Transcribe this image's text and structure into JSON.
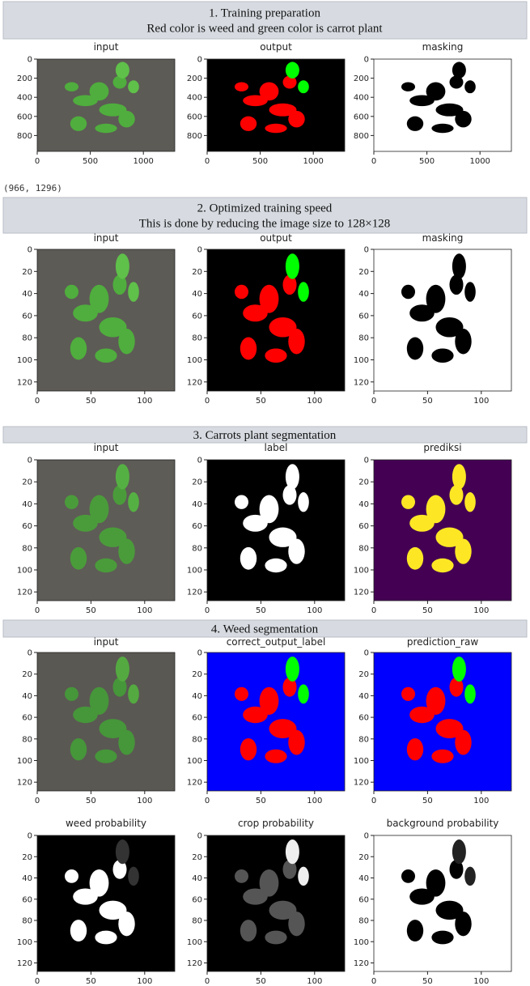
{
  "sections": [
    {
      "header": [
        "1. Training preparation",
        "Red color is weed and green color is carrot plant"
      ],
      "rows": [
        {
          "panels": [
            {
              "title": "input",
              "yticks": [
                0,
                200,
                400,
                600,
                800
              ],
              "xticks": [
                0,
                500,
                1000
              ]
            },
            {
              "title": "output",
              "yticks": [
                0,
                200,
                400,
                600,
                800
              ],
              "xticks": [
                0,
                500,
                1000
              ]
            },
            {
              "title": "masking",
              "yticks": [
                0,
                200,
                400,
                600,
                800
              ],
              "xticks": [
                0,
                500,
                1000
              ]
            }
          ]
        }
      ],
      "note": "(966, 1296)"
    },
    {
      "header": [
        "2. Optimized training speed",
        "This is done by reducing the image size to 128×128"
      ],
      "rows": [
        {
          "panels": [
            {
              "title": "input",
              "yticks": [
                0,
                20,
                40,
                60,
                80,
                100,
                120
              ],
              "xticks": [
                0,
                50,
                100
              ]
            },
            {
              "title": "output",
              "yticks": [
                0,
                20,
                40,
                60,
                80,
                100,
                120
              ],
              "xticks": [
                0,
                50,
                100
              ]
            },
            {
              "title": "masking",
              "yticks": [
                0,
                20,
                40,
                60,
                80,
                100,
                120
              ],
              "xticks": [
                0,
                50,
                100
              ]
            }
          ]
        }
      ]
    },
    {
      "header": [
        "3. Carrots plant segmentation"
      ],
      "rows": [
        {
          "panels": [
            {
              "title": "input",
              "yticks": [
                0,
                20,
                40,
                60,
                80,
                100,
                120
              ],
              "xticks": [
                0,
                50,
                100
              ]
            },
            {
              "title": "label",
              "yticks": [
                0,
                20,
                40,
                60,
                80,
                100,
                120
              ],
              "xticks": [
                0,
                50,
                100
              ]
            },
            {
              "title": "prediksi",
              "yticks": [
                0,
                20,
                40,
                60,
                80,
                100,
                120
              ],
              "xticks": [
                0,
                50,
                100
              ]
            }
          ]
        }
      ]
    },
    {
      "header": [
        "4. Weed segmentation"
      ],
      "rows": [
        {
          "panels": [
            {
              "title": "input",
              "yticks": [
                0,
                20,
                40,
                60,
                80,
                100,
                120
              ],
              "xticks": [
                0,
                50,
                100
              ]
            },
            {
              "title": "correct_output_label",
              "yticks": [
                0,
                20,
                40,
                60,
                80,
                100,
                120
              ],
              "xticks": [
                0,
                50,
                100
              ]
            },
            {
              "title": "prediction_raw",
              "yticks": [
                0,
                20,
                40,
                60,
                80,
                100,
                120
              ],
              "xticks": [
                0,
                50,
                100
              ]
            }
          ]
        },
        {
          "panels": [
            {
              "title": "weed probability",
              "yticks": [
                0,
                20,
                40,
                60,
                80,
                100,
                120
              ],
              "xticks": [
                0,
                50,
                100
              ]
            },
            {
              "title": "crop probability",
              "yticks": [
                0,
                20,
                40,
                60,
                80,
                100,
                120
              ],
              "xticks": [
                0,
                50,
                100
              ]
            },
            {
              "title": "background probability",
              "yticks": [
                0,
                20,
                40,
                60,
                80,
                100,
                120
              ],
              "xticks": [
                0,
                50,
                100
              ]
            }
          ]
        }
      ]
    }
  ]
}
